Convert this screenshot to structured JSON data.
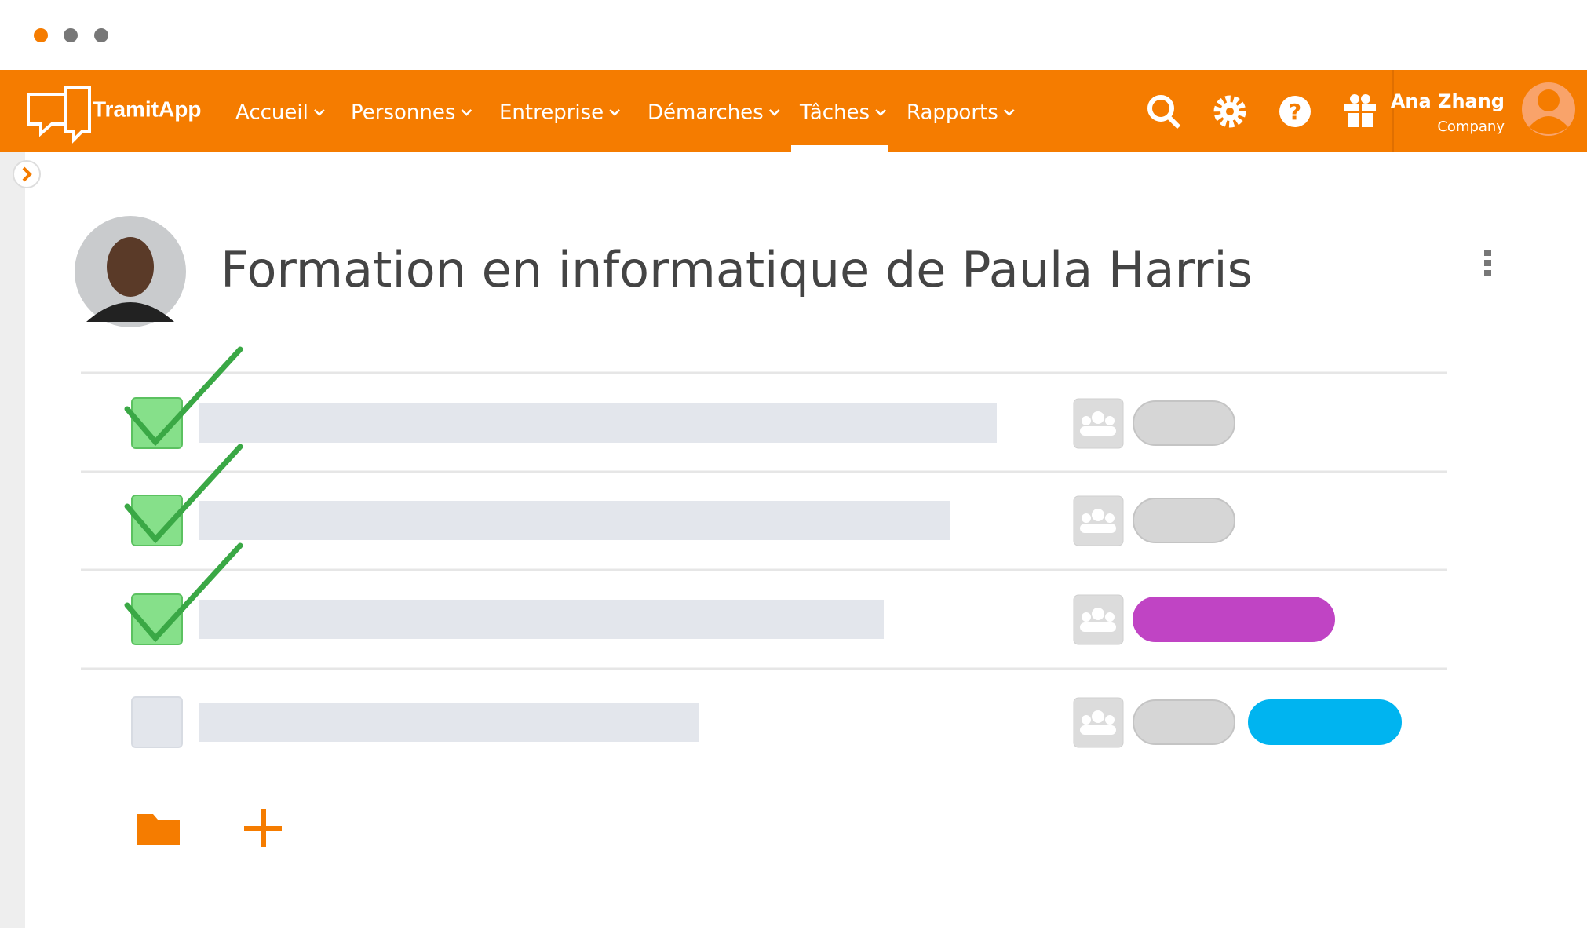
{
  "header": {
    "logo": "TramitApp",
    "nav": [
      "Accueil",
      "Personnes",
      "Entreprise",
      "Démarches",
      "Tâches",
      "Rapports"
    ],
    "user": {
      "name": "Ana Zhang",
      "company": "Company"
    }
  },
  "page": {
    "title": "Formation en informatique de Paula Harris"
  }
}
